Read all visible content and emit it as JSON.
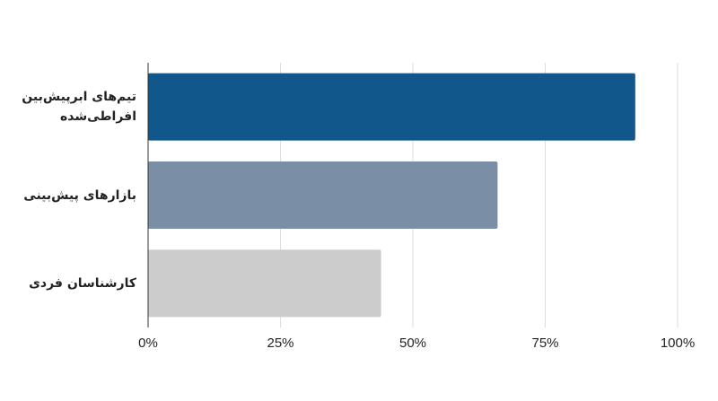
{
  "chart_data": {
    "type": "bar",
    "orientation": "horizontal",
    "categories": [
      "تیم‌های ابرپیش‌بین افراطی‌شده",
      "بازارهای پیش‌بینی",
      "کارشناسان فردی"
    ],
    "values": [
      92,
      66,
      44
    ],
    "colors": [
      "#11578c",
      "#7a8ea6",
      "#cccccc"
    ],
    "xlim": [
      0,
      100
    ],
    "xticks": [
      {
        "value": 0,
        "label": "0%"
      },
      {
        "value": 25,
        "label": "25%"
      },
      {
        "value": 50,
        "label": "50%"
      },
      {
        "value": 75,
        "label": "75%"
      },
      {
        "value": 100,
        "label": "100%"
      }
    ],
    "grid": true
  }
}
